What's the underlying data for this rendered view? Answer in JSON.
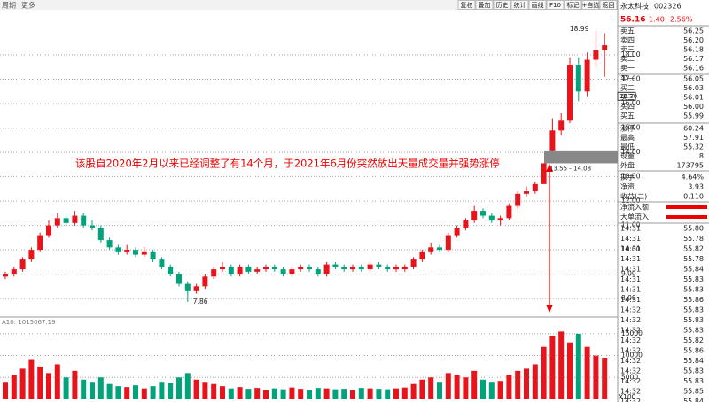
{
  "toolbar": {
    "left": [
      "周期",
      "更多"
    ],
    "buttons": [
      "复权",
      "叠加",
      "历史",
      "统计",
      "画线",
      "F10",
      "标记",
      "+自选",
      "返回"
    ]
  },
  "chart_data": {
    "type": "candlestick",
    "annotation": "该股自2020年2月以来已经调整了有14个月，于2021年6月份突然放出天量成交量并强势涨停",
    "ylim": [
      7.24,
      19.82
    ],
    "yticks": [
      {
        "value": 8,
        "label": "8.00"
      },
      {
        "value": 9,
        "label": "9.00"
      },
      {
        "value": 10,
        "label": "10.00"
      },
      {
        "value": 11,
        "label": "11.00"
      },
      {
        "value": 12,
        "label": "12.00"
      },
      {
        "value": 13,
        "label": "13.00"
      },
      {
        "value": 14,
        "label": "14.00"
      },
      {
        "value": 15,
        "label": "15.00"
      },
      {
        "value": 16,
        "label": "16.00"
      },
      {
        "value": 17,
        "label": "17.00"
      },
      {
        "value": 18,
        "label": "18.00"
      }
    ],
    "grid": true,
    "up_color": "#e8141b",
    "down_color": "#00a37a",
    "high_mark": 18.99,
    "low_mark": 7.86,
    "price_marker": {
      "value": 16.3,
      "label": "16.30"
    },
    "gap": {
      "low": 13.55,
      "high": 14.08,
      "label": "13.55 - 14.08"
    },
    "ohlc": [
      [
        8.9,
        9.1,
        8.8,
        9.0
      ],
      [
        9.0,
        9.3,
        8.9,
        9.2
      ],
      [
        9.2,
        9.7,
        9.1,
        9.6
      ],
      [
        9.6,
        10.1,
        9.5,
        10.0
      ],
      [
        10.0,
        10.7,
        9.9,
        10.6
      ],
      [
        10.6,
        11.2,
        10.5,
        11.0
      ],
      [
        11.0,
        11.5,
        10.9,
        11.3
      ],
      [
        11.3,
        11.4,
        11.0,
        11.1
      ],
      [
        11.1,
        11.6,
        11.0,
        11.4
      ],
      [
        11.4,
        11.5,
        10.9,
        11.0
      ],
      [
        11.0,
        11.2,
        10.8,
        10.9
      ],
      [
        10.9,
        11.0,
        10.3,
        10.4
      ],
      [
        10.4,
        10.5,
        10.0,
        10.1
      ],
      [
        10.1,
        10.2,
        9.8,
        9.9
      ],
      [
        9.9,
        10.2,
        9.8,
        10.0
      ],
      [
        10.0,
        10.1,
        9.7,
        9.8
      ],
      [
        9.8,
        10.1,
        9.7,
        9.9
      ],
      [
        9.9,
        10.0,
        9.5,
        9.6
      ],
      [
        9.6,
        9.7,
        9.2,
        9.3
      ],
      [
        9.3,
        9.4,
        8.9,
        9.0
      ],
      [
        9.0,
        9.1,
        8.5,
        8.6
      ],
      [
        8.6,
        8.7,
        7.86,
        8.3
      ],
      [
        8.3,
        8.6,
        8.2,
        8.5
      ],
      [
        8.5,
        9.0,
        8.4,
        8.9
      ],
      [
        8.9,
        9.3,
        8.8,
        9.2
      ],
      [
        9.2,
        9.5,
        9.1,
        9.3
      ],
      [
        9.3,
        9.4,
        8.9,
        9.0
      ],
      [
        9.0,
        9.4,
        8.9,
        9.3
      ],
      [
        9.3,
        9.4,
        9.0,
        9.1
      ],
      [
        9.1,
        9.3,
        9.0,
        9.2
      ],
      [
        9.2,
        9.4,
        9.1,
        9.3
      ],
      [
        9.3,
        9.4,
        9.1,
        9.2
      ],
      [
        9.2,
        9.3,
        8.9,
        9.0
      ],
      [
        9.0,
        9.3,
        8.9,
        9.2
      ],
      [
        9.2,
        9.4,
        9.1,
        9.3
      ],
      [
        9.3,
        9.4,
        9.1,
        9.2
      ],
      [
        9.2,
        9.3,
        8.9,
        9.0
      ],
      [
        9.0,
        9.5,
        8.9,
        9.4
      ],
      [
        9.4,
        9.5,
        9.2,
        9.3
      ],
      [
        9.3,
        9.4,
        9.1,
        9.2
      ],
      [
        9.2,
        9.4,
        9.1,
        9.3
      ],
      [
        9.3,
        9.4,
        9.1,
        9.2
      ],
      [
        9.2,
        9.5,
        9.1,
        9.4
      ],
      [
        9.4,
        9.5,
        9.2,
        9.3
      ],
      [
        9.3,
        9.4,
        9.1,
        9.2
      ],
      [
        9.2,
        9.4,
        9.1,
        9.3
      ],
      [
        9.2,
        9.4,
        9.1,
        9.3
      ],
      [
        9.3,
        9.7,
        9.2,
        9.6
      ],
      [
        9.6,
        10.0,
        9.5,
        9.9
      ],
      [
        9.9,
        10.3,
        9.8,
        10.1
      ],
      [
        10.1,
        10.2,
        9.9,
        10.0
      ],
      [
        10.0,
        10.7,
        9.9,
        10.6
      ],
      [
        10.6,
        11.0,
        10.5,
        10.9
      ],
      [
        10.9,
        11.3,
        10.8,
        11.2
      ],
      [
        11.2,
        11.8,
        11.1,
        11.6
      ],
      [
        11.6,
        11.7,
        11.3,
        11.4
      ],
      [
        11.4,
        11.5,
        11.1,
        11.2
      ],
      [
        11.2,
        11.4,
        11.0,
        11.3
      ],
      [
        11.3,
        11.9,
        11.2,
        11.8
      ],
      [
        11.8,
        12.4,
        11.7,
        12.3
      ],
      [
        12.3,
        12.6,
        12.2,
        12.4
      ],
      [
        12.4,
        12.8,
        12.3,
        12.7
      ],
      [
        12.7,
        13.55,
        12.7,
        13.55
      ],
      [
        14.08,
        15.4,
        14.08,
        14.9
      ],
      [
        14.9,
        15.6,
        14.7,
        15.3
      ],
      [
        15.3,
        17.9,
        15.2,
        17.6
      ],
      [
        17.6,
        17.9,
        16.1,
        16.5
      ],
      [
        16.5,
        18.1,
        16.3,
        17.8
      ],
      [
        17.8,
        18.99,
        17.5,
        18.2
      ],
      [
        18.2,
        18.9,
        17.1,
        18.4
      ]
    ],
    "volume_label": "A10: 1015067.19",
    "volume_unit": "X100",
    "volume_ylim": [
      0,
      18000
    ],
    "volume_ticks": [
      5000,
      10000,
      15000
    ],
    "volume": [
      4000,
      5500,
      7000,
      9000,
      7500,
      6000,
      8000,
      5000,
      6500,
      4500,
      4000,
      5000,
      3500,
      3000,
      2800,
      3200,
      2500,
      3000,
      4000,
      3800,
      5000,
      6000,
      4500,
      4000,
      3500,
      3000,
      2500,
      2800,
      2400,
      2600,
      2200,
      2500,
      2300,
      2700,
      2400,
      2200,
      2600,
      2500,
      2300,
      2400,
      2200,
      2600,
      2500,
      2400,
      2300,
      2500,
      2700,
      3500,
      4500,
      5000,
      4000,
      6000,
      5500,
      5000,
      6500,
      4500,
      4000,
      4200,
      5500,
      6500,
      7000,
      8000,
      12000,
      14500,
      15500,
      13000,
      15000,
      12000,
      10000,
      9500
    ]
  },
  "quote_panel": {
    "name": "永太科技",
    "code": "002326",
    "price": "56.16",
    "change": "1.40",
    "change_pct": "2.56%",
    "asks": [
      {
        "label": "卖五",
        "price": "56.25"
      },
      {
        "label": "卖四",
        "price": "56.20"
      },
      {
        "label": "卖三",
        "price": "56.18"
      },
      {
        "label": "卖二",
        "price": "56.17"
      },
      {
        "label": "卖一",
        "price": "56.16"
      }
    ],
    "bids": [
      {
        "label": "买一",
        "price": "56.05"
      },
      {
        "label": "买二",
        "price": "56.03"
      },
      {
        "label": "买三",
        "price": "56.01"
      },
      {
        "label": "买四",
        "price": "56.00"
      },
      {
        "label": "买五",
        "price": "55.99"
      }
    ],
    "stats": [
      {
        "label": "涨停",
        "value": "60.24"
      },
      {
        "label": "最高",
        "value": "57.91"
      },
      {
        "label": "最低",
        "value": "55.32"
      },
      {
        "label": "现量",
        "value": "8"
      },
      {
        "label": "外盘",
        "value": "173795"
      }
    ],
    "stats2": [
      {
        "label": "换手",
        "value": "4.64%"
      },
      {
        "label": "净资",
        "value": "3.93"
      },
      {
        "label": "收益(二)",
        "value": "0.110"
      }
    ],
    "flows": [
      "净流入额",
      "大单流入"
    ],
    "trades": [
      {
        "time": "14:31",
        "price": "55.80"
      },
      {
        "time": "14:31",
        "price": "55.78"
      },
      {
        "time": "14:31",
        "price": "55.82"
      },
      {
        "time": "14:31",
        "price": "55.78"
      },
      {
        "time": "14:31",
        "price": "55.84"
      },
      {
        "time": "14:31",
        "price": "55.83"
      },
      {
        "time": "14:31",
        "price": "55.83"
      },
      {
        "time": "14:31",
        "price": "55.86"
      },
      {
        "time": "14:32",
        "price": "55.83"
      },
      {
        "time": "14:32",
        "price": "55.83"
      },
      {
        "time": "14:32",
        "price": "55.83"
      },
      {
        "time": "14:32",
        "price": "55.82"
      },
      {
        "time": "14:32",
        "price": "55.86"
      },
      {
        "time": "14:32",
        "price": "55.84"
      },
      {
        "time": "14:32",
        "price": "55.83"
      },
      {
        "time": "14:32",
        "price": "55.83"
      },
      {
        "time": "14:32",
        "price": "55.85"
      },
      {
        "time": "14:32",
        "price": "55.84"
      }
    ]
  }
}
